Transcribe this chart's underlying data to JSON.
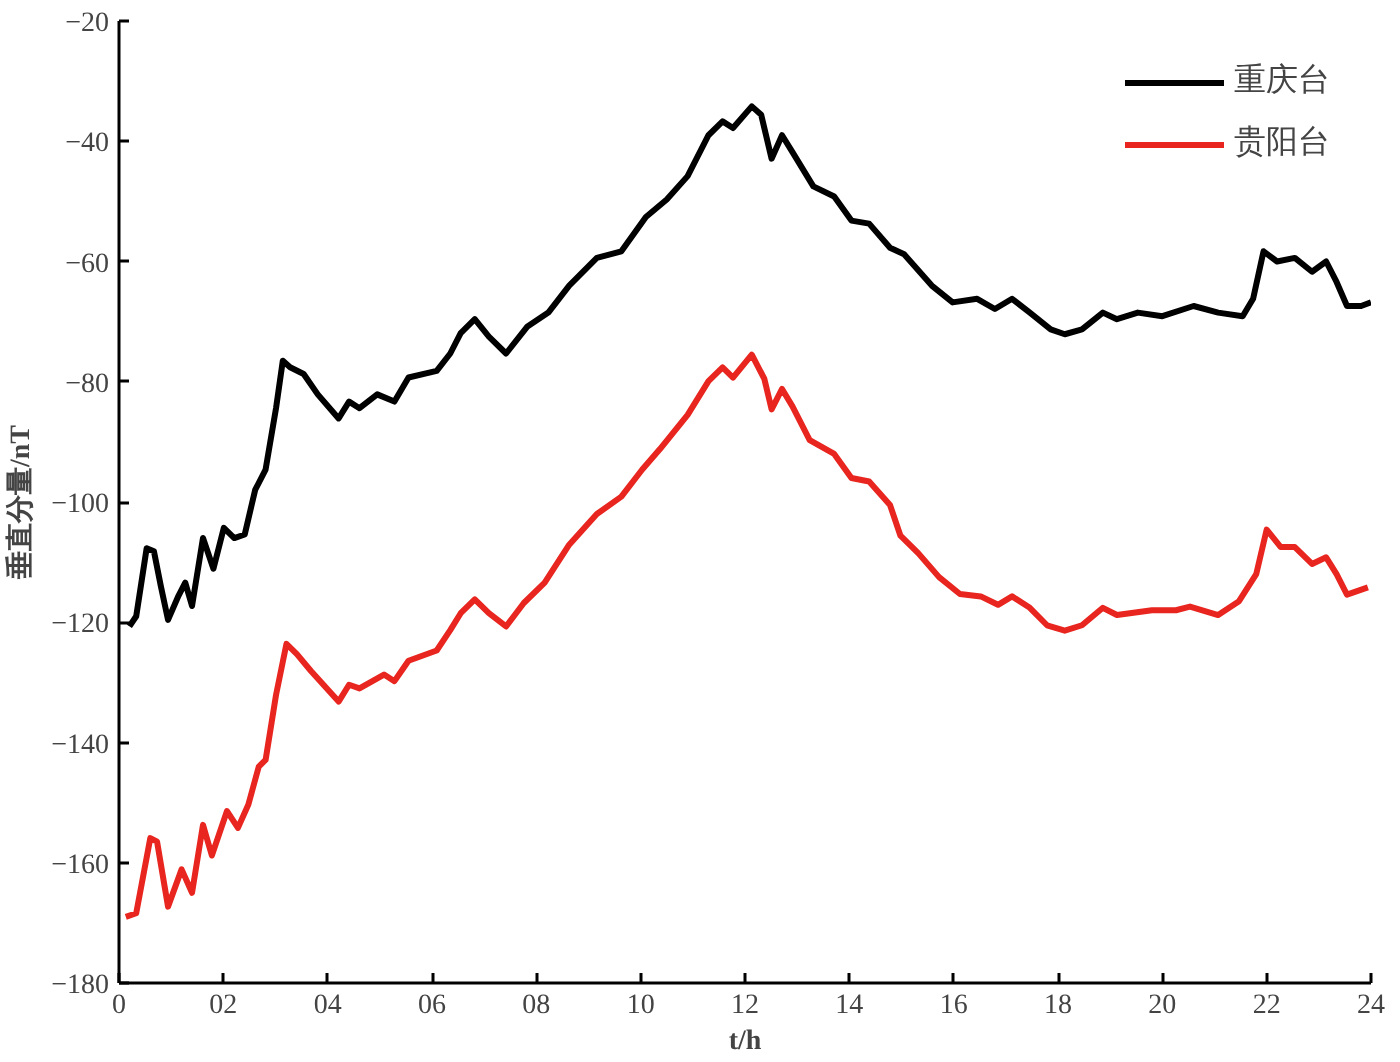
{
  "chart_data": {
    "type": "line",
    "xlabel": "t/h",
    "ylabel": "垂直分量/nT",
    "xlim": [
      0,
      24
    ],
    "ylim": [
      -180,
      -20
    ],
    "xticks": [
      0,
      {
        "value": 2,
        "label": "02"
      },
      {
        "value": 4,
        "label": "04"
      },
      {
        "value": 6,
        "label": "06"
      },
      {
        "value": 8,
        "label": "08"
      },
      10,
      12,
      14,
      16,
      18,
      20,
      22,
      24
    ],
    "yticks": [
      -180,
      -160,
      -140,
      -120,
      -100,
      -80,
      -60,
      -40,
      -20
    ],
    "grid": false,
    "legend": "top right",
    "line_style": "solid",
    "series": [
      {
        "name": "重庆台",
        "color": "#000000",
        "x": [
          0.2,
          0.33,
          0.53,
          0.67,
          0.8,
          0.94,
          1.14,
          1.27,
          1.4,
          1.61,
          1.81,
          2.01,
          2.21,
          2.41,
          2.61,
          2.81,
          3.01,
          3.14,
          3.28,
          3.54,
          3.81,
          4.21,
          4.41,
          4.61,
          4.95,
          5.28,
          5.55,
          6.09,
          6.35,
          6.55,
          6.82,
          7.09,
          7.42,
          7.83,
          8.23,
          8.63,
          9.16,
          9.63,
          10.1,
          10.5,
          10.9,
          11.3,
          11.57,
          11.77,
          12.13,
          12.31,
          12.51,
          12.71,
          12.91,
          13.31,
          13.71,
          14.04,
          14.38,
          14.78,
          15.05,
          15.58,
          15.98,
          16.45,
          16.79,
          17.12,
          17.46,
          17.86,
          18.13,
          18.46,
          18.86,
          19.13,
          19.53,
          20.0,
          20.6,
          21.07,
          21.54,
          21.74,
          21.94,
          22.2,
          22.54,
          22.87,
          23.14,
          23.34,
          23.54,
          23.81,
          24.0
        ],
        "values": [
          -120.7,
          -119.0,
          -107.7,
          -108.2,
          -113.9,
          -119.6,
          -115.6,
          -113.4,
          -117.3,
          -106.0,
          -111.1,
          -104.3,
          -106.0,
          -105.4,
          -98.0,
          -94.6,
          -84.4,
          -76.5,
          -77.6,
          -78.7,
          -82.1,
          -86.1,
          -83.3,
          -84.4,
          -82.1,
          -83.3,
          -79.3,
          -78.2,
          -75.3,
          -71.9,
          -69.6,
          -72.5,
          -75.3,
          -70.8,
          -68.5,
          -64.0,
          -59.4,
          -58.3,
          -52.6,
          -49.7,
          -45.8,
          -39.0,
          -36.7,
          -37.8,
          -34.2,
          -35.6,
          -42.9,
          -39.0,
          -41.8,
          -47.5,
          -49.2,
          -53.2,
          -53.7,
          -57.7,
          -58.8,
          -64.0,
          -66.8,
          -66.2,
          -67.9,
          -66.2,
          -68.5,
          -71.3,
          -72.1,
          -71.3,
          -68.5,
          -69.6,
          -68.5,
          -69.1,
          -67.4,
          -68.5,
          -69.1,
          -66.2,
          -58.3,
          -60.0,
          -59.4,
          -61.7,
          -60.0,
          -63.4,
          -67.4,
          -67.4,
          -66.8
        ]
      },
      {
        "name": "贵阳台",
        "color": "#e8251f",
        "x": [
          0.13,
          0.33,
          0.6,
          0.73,
          0.94,
          1.2,
          1.4,
          1.61,
          1.78,
          2.07,
          2.28,
          2.48,
          2.68,
          2.81,
          3.01,
          3.21,
          3.41,
          3.68,
          4.21,
          4.41,
          4.61,
          5.08,
          5.28,
          5.55,
          6.09,
          6.35,
          6.55,
          6.82,
          7.09,
          7.42,
          7.76,
          8.16,
          8.63,
          9.16,
          9.63,
          10.03,
          10.37,
          10.9,
          11.3,
          11.57,
          11.77,
          12.13,
          12.37,
          12.51,
          12.71,
          12.91,
          13.24,
          13.71,
          14.04,
          14.38,
          14.78,
          14.98,
          15.32,
          15.72,
          16.12,
          16.52,
          16.85,
          17.12,
          17.46,
          17.79,
          18.13,
          18.46,
          18.86,
          19.13,
          19.8,
          20.26,
          20.53,
          21.07,
          21.47,
          21.8,
          22.0,
          22.27,
          22.54,
          22.87,
          23.14,
          23.34,
          23.54,
          23.94
        ],
        "values": [
          -169.0,
          -168.4,
          -155.9,
          -156.5,
          -167.3,
          -161.1,
          -165.0,
          -153.7,
          -158.8,
          -151.4,
          -154.2,
          -150.3,
          -144.0,
          -142.9,
          -132.1,
          -123.6,
          -125.3,
          -128.1,
          -133.2,
          -130.4,
          -131.0,
          -128.7,
          -129.8,
          -126.4,
          -124.7,
          -121.3,
          -118.5,
          -116.2,
          -118.5,
          -120.7,
          -116.8,
          -113.4,
          -107.1,
          -102.0,
          -99.1,
          -94.6,
          -91.2,
          -85.5,
          -79.9,
          -77.6,
          -79.3,
          -75.5,
          -79.5,
          -84.6,
          -81.2,
          -84.1,
          -89.7,
          -92.0,
          -96.0,
          -96.6,
          -100.5,
          -105.6,
          -108.5,
          -112.5,
          -115.3,
          -115.7,
          -117.1,
          -115.7,
          -117.6,
          -120.5,
          -121.4,
          -120.5,
          -117.6,
          -118.8,
          -118.0,
          -118.0,
          -117.4,
          -118.8,
          -116.5,
          -112.0,
          -104.6,
          -107.5,
          -107.5,
          -110.3,
          -109.2,
          -112.0,
          -115.4,
          -114.2
        ]
      }
    ]
  }
}
